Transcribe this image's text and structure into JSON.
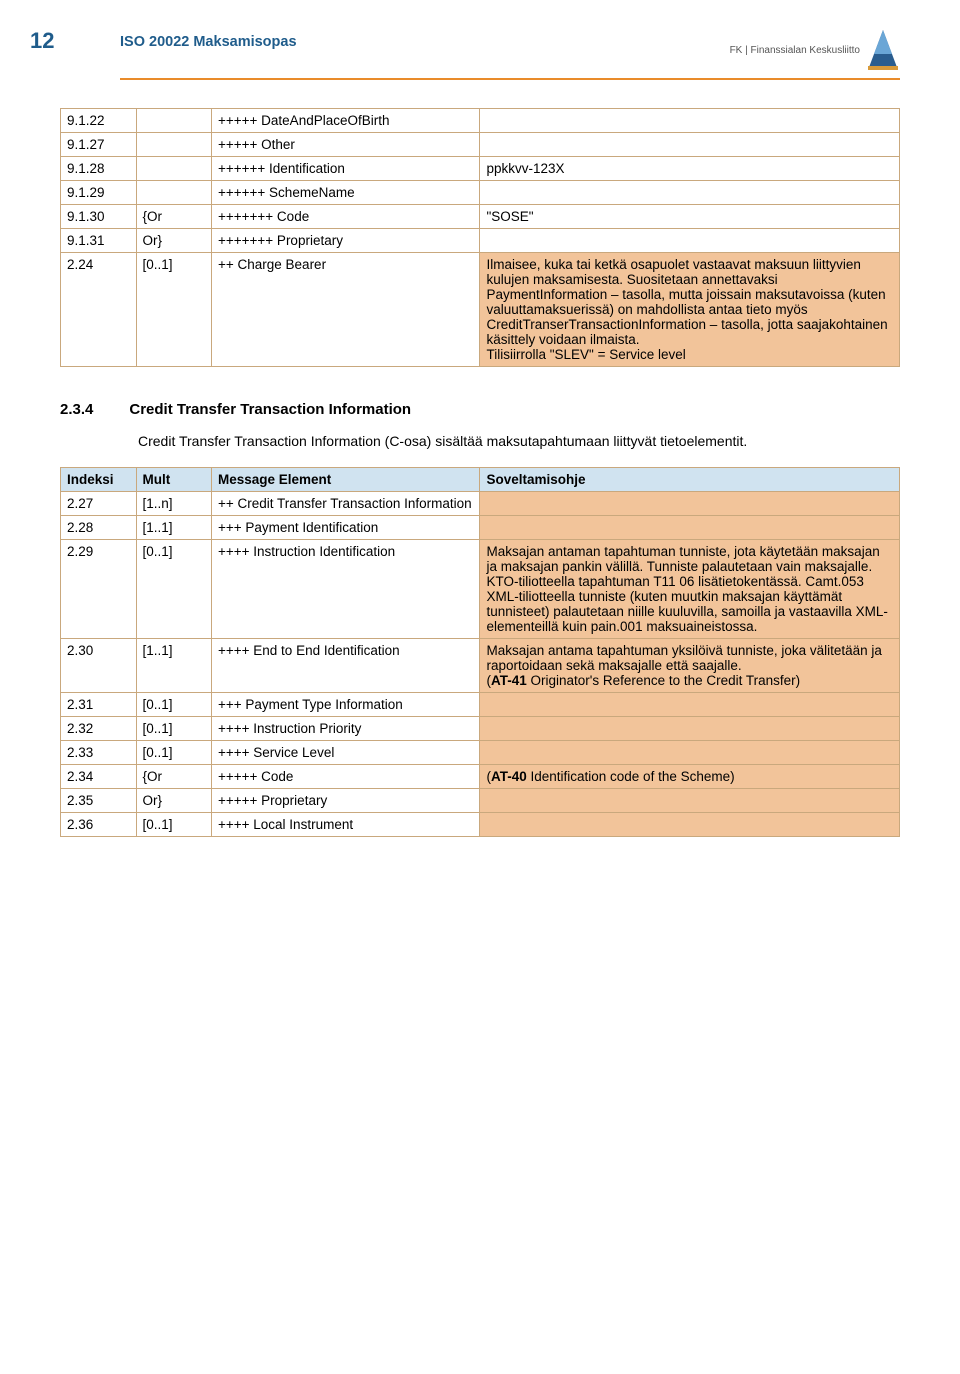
{
  "page_number": "12",
  "doc_title": "ISO 20022 Maksamisopas",
  "logo_label": "FK | Finanssialan Keskusliitto",
  "table1": {
    "rows": [
      {
        "idx": "9.1.22",
        "mult": "",
        "msg": "+++++ DateAndPlaceOfBirth",
        "note": ""
      },
      {
        "idx": "9.1.27",
        "mult": "",
        "msg": "+++++ Other",
        "note": ""
      },
      {
        "idx": "9.1.28",
        "mult": "",
        "msg": "++++++ Identification",
        "note": "ppkkvv-123X"
      },
      {
        "idx": "9.1.29",
        "mult": "",
        "msg": "++++++ SchemeName",
        "note": ""
      },
      {
        "idx": "9.1.30",
        "mult": "{Or",
        "msg": "+++++++ Code",
        "note": "\"SOSE\""
      },
      {
        "idx": "9.1.31",
        "mult": "Or}",
        "msg": "+++++++ Proprietary",
        "note": ""
      },
      {
        "idx": "2.24",
        "mult": "[0..1]",
        "msg": "++ Charge Bearer",
        "note": "Ilmaisee, kuka tai ketkä osapuolet vastaavat maksuun liittyvien kulujen maksamisesta. Suositetaan annettavaksi PaymentInformation – tasolla, mutta joissain maksutavoissa (kuten valuuttamaksuerissä) on mahdollista antaa tieto myös CreditTranserTransactionInformation – tasolla, jotta saajakohtainen käsittely voidaan ilmaista.\nTilisiirrolla \"SLEV\" = Service level",
        "orange": true
      }
    ]
  },
  "section": {
    "num": "2.3.4",
    "title": "Credit Transfer Transaction Information",
    "para": "Credit Transfer Transaction Information (C-osa) sisältää maksutapahtumaan liittyvät tietoelementit."
  },
  "table2": {
    "headers": {
      "idx": "Indeksi",
      "mult": "Mult",
      "msg": "Message Element",
      "note": "Soveltamisohje"
    },
    "rows": [
      {
        "idx": "2.27",
        "mult": "[1..n]",
        "msg": "++ Credit Transfer Transaction Information",
        "note": "",
        "orange": true
      },
      {
        "idx": "2.28",
        "mult": "[1..1]",
        "msg": "+++ Payment Identification",
        "note": "",
        "orange": true
      },
      {
        "idx": "2.29",
        "mult": "[0..1]",
        "msg": "++++ Instruction Identification",
        "note": "Maksajan antaman tapahtuman tunniste, jota käytetään maksajan ja maksajan pankin välillä. Tunniste palautetaan vain maksajalle. KTO-tiliotteella tapahtuman T11 06 lisätietokentässä. Camt.053 XML-tiliotteella tunniste (kuten muutkin maksajan käyttämät tunnisteet) palautetaan niille kuuluvilla, samoilla ja vastaavilla XML-elementeillä kuin pain.001 maksuaineistossa.",
        "orange": true
      },
      {
        "idx": "2.30",
        "mult": "[1..1]",
        "msg": "++++ End to End Identification",
        "note": "Maksajan antama tapahtuman yksilöivä tunniste, joka välitetään ja raportoidaan sekä maksajalle että saajalle.\n(<b>AT-41</b> Originator's Reference to the Credit Transfer)",
        "orange": true,
        "html": true
      },
      {
        "idx": "2.31",
        "mult": "[0..1]",
        "msg": "+++ Payment Type Information",
        "note": "",
        "orange": true
      },
      {
        "idx": "2.32",
        "mult": "[0..1]",
        "msg": "++++ Instruction Priority",
        "note": "",
        "orange": true
      },
      {
        "idx": "2.33",
        "mult": "[0..1]",
        "msg": "++++ Service Level",
        "note": "",
        "orange": true
      },
      {
        "idx": "2.34",
        "mult": "{Or",
        "msg": "+++++ Code",
        "note": "(<b>AT-40</b> Identification code of the Scheme)",
        "orange": true,
        "html": true
      },
      {
        "idx": "2.35",
        "mult": "Or}",
        "msg": "+++++ Proprietary",
        "note": "",
        "orange": true
      },
      {
        "idx": "2.36",
        "mult": "[0..1]",
        "msg": "++++ Local Instrument",
        "note": "",
        "orange": true
      }
    ]
  },
  "colors": {
    "header_blue": "#1f5c8b",
    "orange_line": "#e98b2a",
    "table_border": "#c9a87d",
    "header_bg": "#d0e3f0",
    "orange_bg": "#f2c49a"
  }
}
